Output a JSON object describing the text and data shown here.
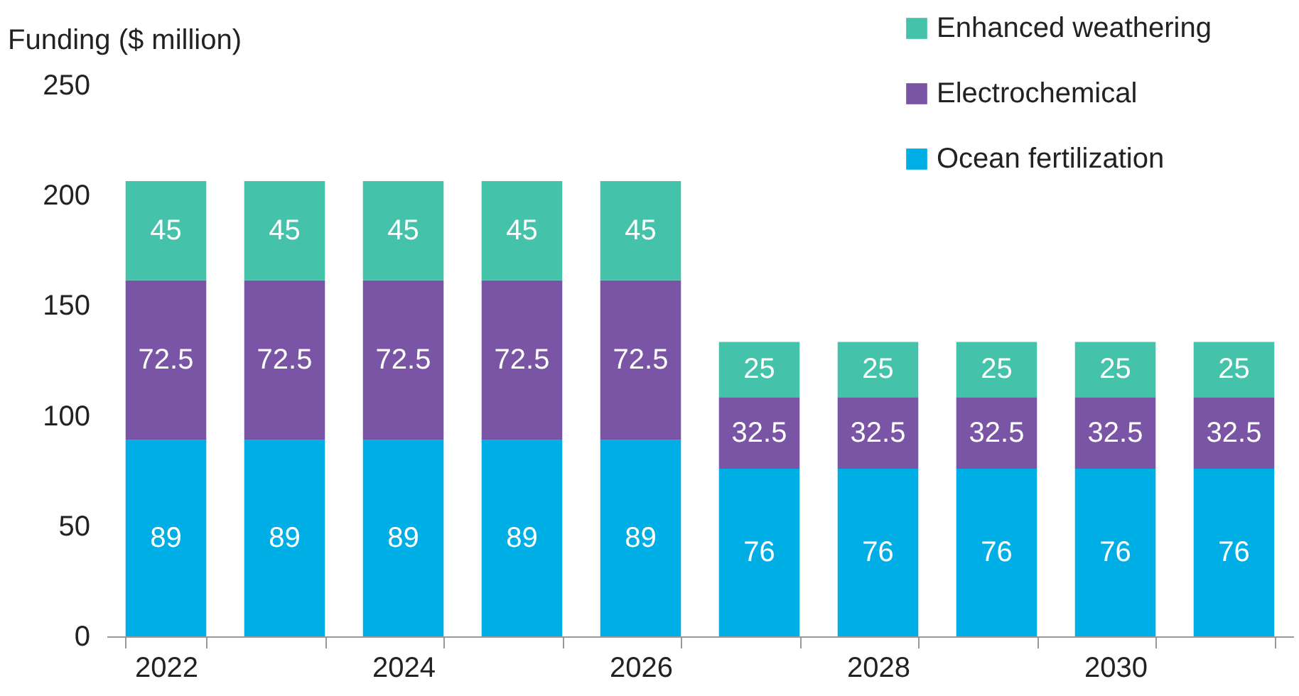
{
  "chart_data": {
    "type": "bar",
    "stacked": true,
    "ylabel": "Funding ($ million)",
    "categories": [
      "2022",
      null,
      "2024",
      null,
      "2026",
      null,
      "2028",
      null,
      "2030",
      null
    ],
    "ylim": [
      0,
      250
    ],
    "yticks": [
      0,
      50,
      100,
      150,
      200,
      250
    ],
    "grid": false,
    "legend": "top right",
    "data_labels": true,
    "series": [
      {
        "name": "Ocean fertilization",
        "color": "#00aee6",
        "values": [
          89,
          89,
          89,
          89,
          89,
          76,
          76,
          76,
          76,
          76
        ]
      },
      {
        "name": "Electrochemical",
        "color": "#7b55a5",
        "values": [
          72.5,
          72.5,
          72.5,
          72.5,
          72.5,
          32.5,
          32.5,
          32.5,
          32.5,
          32.5
        ]
      },
      {
        "name": "Enhanced weathering",
        "color": "#44c2aa",
        "values": [
          45,
          45,
          45,
          45,
          45,
          25,
          25,
          25,
          25,
          25
        ]
      }
    ]
  }
}
